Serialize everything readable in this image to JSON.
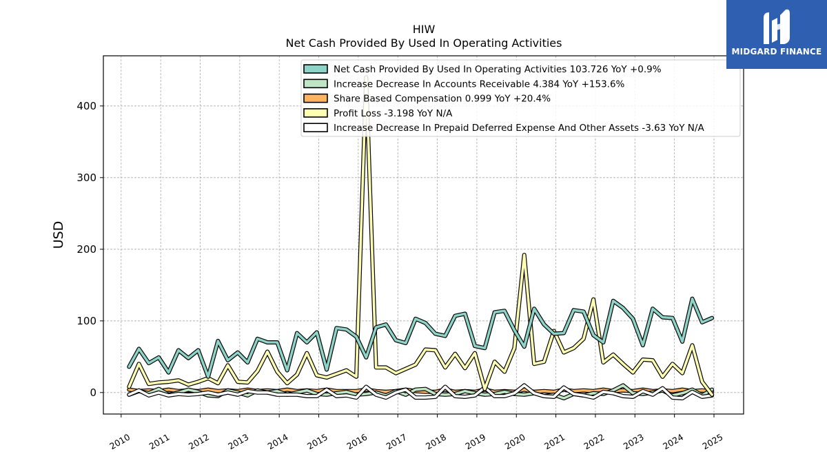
{
  "chart_data": {
    "type": "line",
    "title": "HIW",
    "subtitle": "Net Cash Provided By Used In Operating Activities",
    "ylabel": "USD",
    "xlabel": "",
    "xlim": [
      2009.55,
      2025.75
    ],
    "ylim": [
      -30,
      470
    ],
    "yticks": [
      0,
      100,
      200,
      300,
      400
    ],
    "xticks": [
      "2010",
      "2011",
      "2012",
      "2013",
      "2014",
      "2015",
      "2016",
      "2017",
      "2018",
      "2019",
      "2020",
      "2021",
      "2022",
      "2023",
      "2024",
      "2025"
    ],
    "grid": true,
    "legend_position": "top-right",
    "x": [
      2010.2,
      2010.45,
      2010.7,
      2010.95,
      2011.2,
      2011.45,
      2011.7,
      2011.95,
      2012.2,
      2012.45,
      2012.7,
      2012.95,
      2013.2,
      2013.45,
      2013.7,
      2013.95,
      2014.2,
      2014.45,
      2014.7,
      2014.95,
      2015.2,
      2015.45,
      2015.7,
      2015.95,
      2016.2,
      2016.45,
      2016.7,
      2016.95,
      2017.2,
      2017.45,
      2017.7,
      2017.95,
      2018.2,
      2018.45,
      2018.7,
      2018.95,
      2019.2,
      2019.45,
      2019.7,
      2019.95,
      2020.2,
      2020.45,
      2020.7,
      2020.95,
      2021.2,
      2021.45,
      2021.7,
      2021.95,
      2022.2,
      2022.45,
      2022.7,
      2022.95,
      2023.2,
      2023.45,
      2023.7,
      2023.95,
      2024.2,
      2024.45,
      2024.7,
      2024.95
    ],
    "series": [
      {
        "name": "Net Cash Provided By Used In Operating Activities",
        "legend_value": "103.726 YoY +0.9%",
        "color": "#8dd3c7",
        "values": [
          36,
          61,
          41,
          49,
          28,
          59,
          48,
          59,
          22,
          72,
          45,
          56,
          42,
          75,
          70,
          70,
          31,
          83,
          70,
          84,
          32,
          90,
          88,
          78,
          49,
          91,
          95,
          73,
          69,
          103,
          97,
          82,
          79,
          107,
          110,
          65,
          62,
          112,
          114,
          87,
          64,
          117,
          95,
          82,
          83,
          115,
          113,
          80,
          70,
          128,
          118,
          103,
          66,
          117,
          105,
          104,
          71,
          131,
          98,
          104
        ]
      },
      {
        "name": "Increase Decrease In Accounts Receivable",
        "legend_value": "4.384 YoY +153.6%",
        "color": "#bfe5c4",
        "values": [
          -3,
          2,
          -1,
          5,
          -3,
          0,
          4,
          1,
          -4,
          -5,
          3,
          0,
          -4,
          3,
          0,
          2,
          -3,
          0,
          3,
          -2,
          -3,
          -1,
          1,
          -3,
          -2,
          0,
          -4,
          2,
          -3,
          4,
          5,
          -2,
          -3,
          -2,
          2,
          -1,
          -3,
          -2,
          1,
          -2,
          -3,
          -1,
          -5,
          -3,
          -8,
          -2,
          -4,
          -1,
          -2,
          3,
          10,
          -1,
          -2,
          0,
          3,
          -4,
          -1,
          4,
          -4,
          4
        ]
      },
      {
        "name": "Share Based Compensation",
        "legend_value": "0.999 YoY +20.4%",
        "color": "#fdb462",
        "values": [
          4,
          2,
          3,
          2,
          4,
          2,
          3,
          2,
          4,
          2,
          3,
          2,
          4,
          2,
          3,
          2,
          4,
          2,
          3,
          2,
          4,
          2,
          2,
          2,
          4,
          2,
          1,
          2,
          4,
          2,
          1,
          1,
          4,
          1,
          2,
          1,
          4,
          1,
          2,
          1,
          4,
          1,
          2,
          1,
          4,
          2,
          3,
          2,
          4,
          2,
          3,
          2,
          4,
          2,
          3,
          2,
          4,
          2,
          3,
          1
        ]
      },
      {
        "name": "Profit Loss",
        "legend_value": "-3.198 YoY N/A",
        "color": "#ffffb3",
        "values": [
          8,
          40,
          12,
          14,
          15,
          17,
          11,
          15,
          20,
          13,
          38,
          15,
          14,
          30,
          57,
          29,
          13,
          25,
          55,
          24,
          21,
          26,
          31,
          22,
          440,
          35,
          35,
          27,
          33,
          39,
          60,
          59,
          35,
          54,
          34,
          55,
          5,
          43,
          29,
          62,
          192,
          40,
          43,
          86,
          56,
          62,
          75,
          130,
          42,
          53,
          40,
          28,
          46,
          45,
          22,
          40,
          27,
          66,
          15,
          -3
        ]
      },
      {
        "name": "Increase Decrease In Prepaid Deferred Expense And Other Assets",
        "legend_value": "-3.63 YoY N/A",
        "color": "#ffffff",
        "values": [
          -3,
          3,
          -4,
          0,
          -4,
          -2,
          -3,
          -2,
          0,
          -3,
          0,
          -3,
          2,
          0,
          0,
          -3,
          -3,
          -3,
          -5,
          -5,
          4,
          -5,
          -4,
          -7,
          8,
          -3,
          -7,
          0,
          4,
          -7,
          -7,
          -6,
          8,
          -5,
          -6,
          -4,
          7,
          -5,
          -5,
          -1,
          10,
          -1,
          -5,
          -6,
          7,
          -2,
          -4,
          -7,
          1,
          -1,
          -5,
          -6,
          2,
          -3,
          6,
          -7,
          -8,
          1,
          -6,
          -4
        ]
      }
    ]
  },
  "logo": {
    "text": "MIDGARD FINANCE"
  }
}
